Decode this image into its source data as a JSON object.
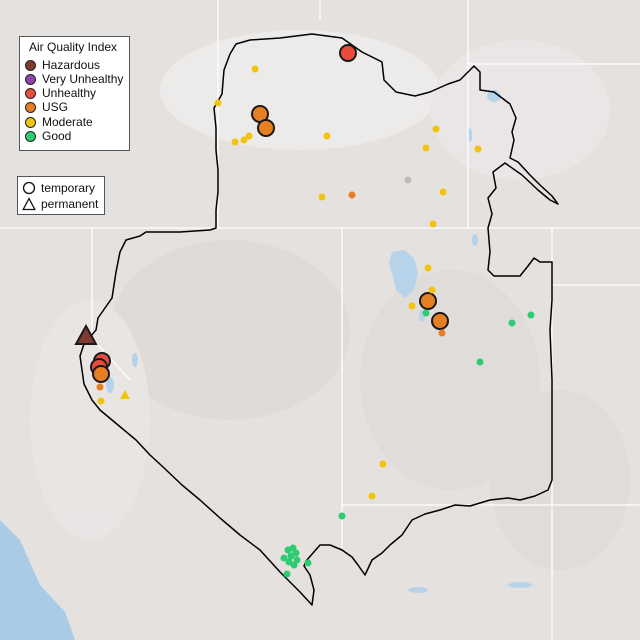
{
  "legend": {
    "title": "Air Quality Index",
    "categories": [
      {
        "label": "Hazardous",
        "color": "#7e3b2f"
      },
      {
        "label": "Very Unhealthy",
        "color": "#8e44ad"
      },
      {
        "label": "Unhealthy",
        "color": "#e74c3c"
      },
      {
        "label": "USG",
        "color": "#e67e22"
      },
      {
        "label": "Moderate",
        "color": "#f1c40f"
      },
      {
        "label": "Good",
        "color": "#2ecc71"
      }
    ]
  },
  "monitor_types": {
    "temporary": {
      "label": "temporary",
      "symbol": "circle"
    },
    "permanent": {
      "label": "permanent",
      "symbol": "triangle"
    }
  },
  "colors": {
    "background": "#e4e1df",
    "water": "#a9cbe6",
    "boundary": "#000000",
    "state_lines": "#ffffff",
    "no_data": "#bdbdbd"
  }
}
